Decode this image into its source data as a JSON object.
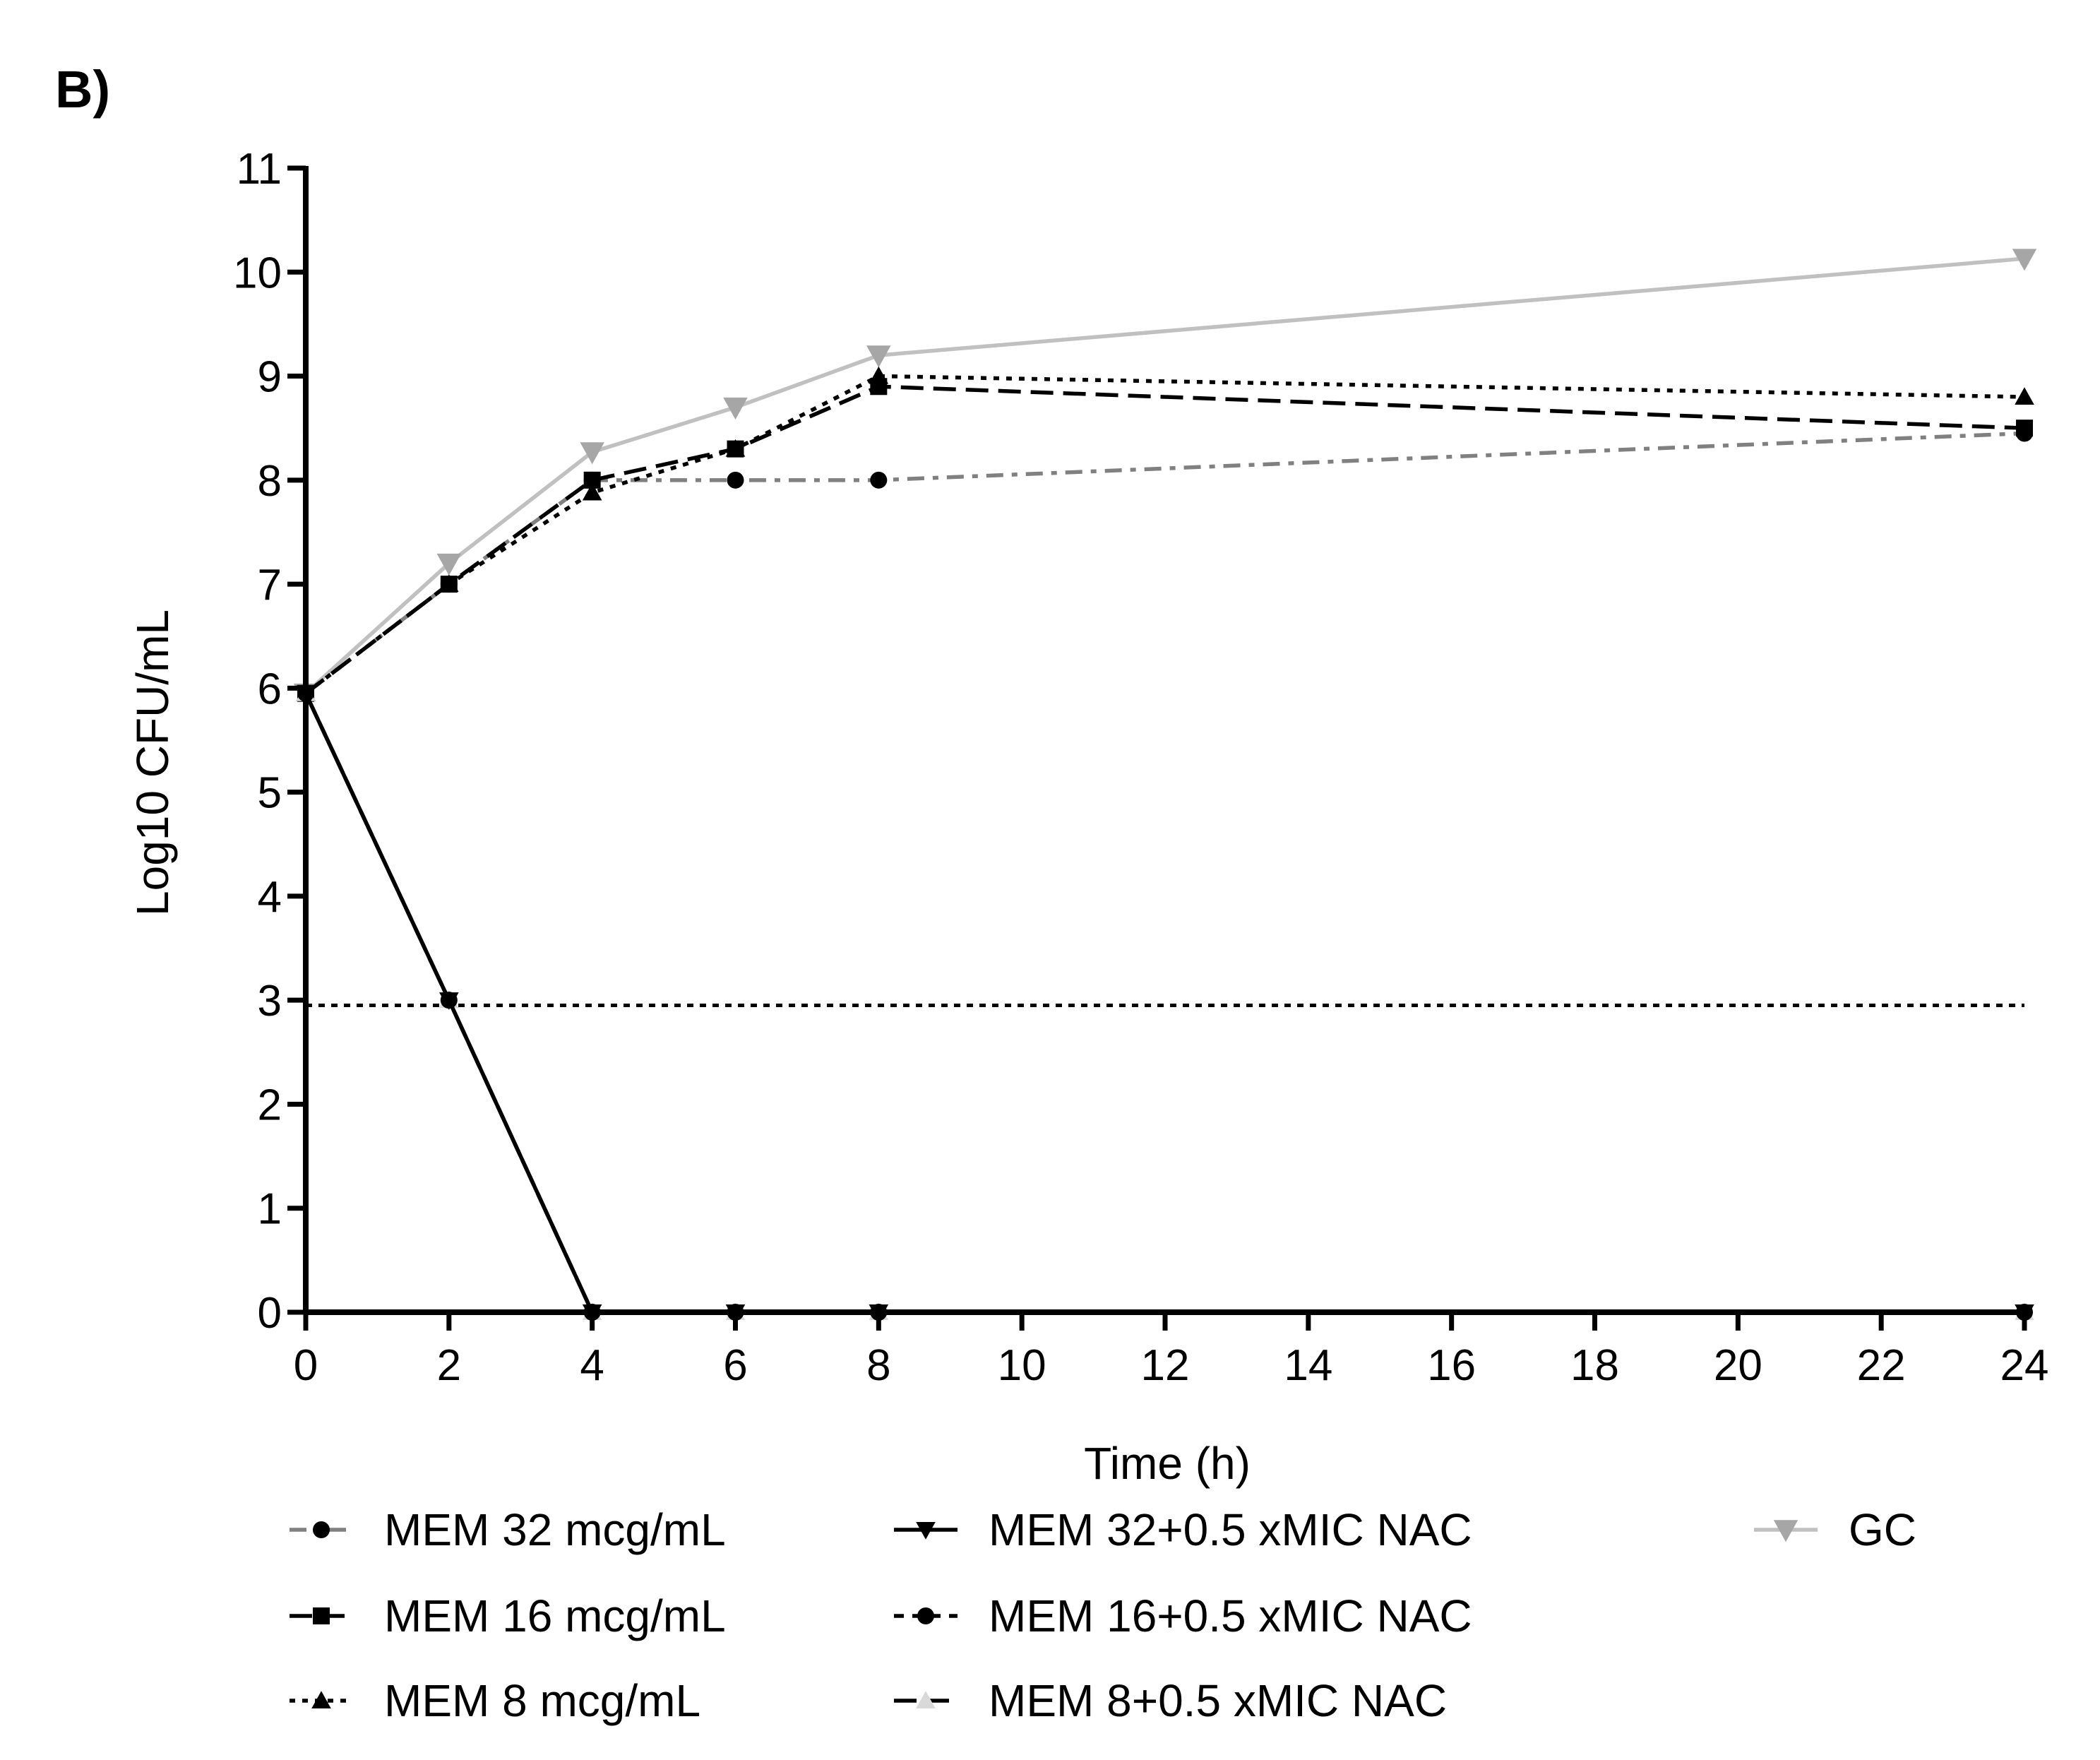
{
  "chart_data": {
    "type": "line",
    "panel_label": "B)",
    "xlabel": "Time (h)",
    "ylabel": "Log10 CFU/mL",
    "xlim": [
      0,
      24
    ],
    "ylim": [
      0,
      11
    ],
    "xticks": [
      0,
      2,
      4,
      6,
      8,
      10,
      12,
      14,
      16,
      18,
      20,
      22,
      24
    ],
    "yticks": [
      0,
      1,
      2,
      3,
      4,
      5,
      6,
      7,
      8,
      9,
      10,
      11
    ],
    "reference_line": {
      "y": 2.95,
      "style": "dotted",
      "color": "#000000"
    },
    "series": [
      {
        "name": "MEM 32 mcg/mL",
        "x": [
          0,
          2,
          4,
          6,
          8,
          24
        ],
        "y": [
          5.95,
          7.0,
          8.0,
          8.0,
          8.0,
          8.45
        ],
        "color": "#808080",
        "marker": "circle",
        "dash": "dashdot",
        "marker_color": "#000000"
      },
      {
        "name": "MEM 16 mcg/mL",
        "x": [
          0,
          2,
          4,
          6,
          8,
          24
        ],
        "y": [
          5.95,
          7.0,
          8.0,
          8.3,
          8.9,
          8.5
        ],
        "color": "#000000",
        "marker": "square",
        "dash": "longdash",
        "marker_color": "#000000"
      },
      {
        "name": "MEM 8 mcg/mL",
        "x": [
          0,
          2,
          4,
          6,
          8,
          24
        ],
        "y": [
          5.95,
          7.0,
          7.88,
          8.3,
          9.0,
          8.8
        ],
        "color": "#000000",
        "marker": "triangle-up",
        "dash": "dot",
        "marker_color": "#000000"
      },
      {
        "name": "MEM 32+0.5 xMIC NAC",
        "x": [
          0,
          2,
          4,
          6,
          8,
          24
        ],
        "y": [
          5.95,
          3.0,
          0,
          0,
          0,
          0
        ],
        "color": "#000000",
        "marker": "triangle-down",
        "dash": "solid",
        "marker_color": "#000000"
      },
      {
        "name": "MEM 16+0.5 xMIC NAC",
        "x": [
          0,
          2,
          4,
          6,
          8,
          24
        ],
        "y": [
          5.95,
          3.0,
          0,
          0,
          0,
          0
        ],
        "color": "#000000",
        "marker": "circle",
        "dash": "shortdash",
        "marker_color": "#000000"
      },
      {
        "name": "MEM 8+0.5 xMIC NAC",
        "x": [
          0,
          2,
          4,
          6,
          8,
          24
        ],
        "y": [
          5.95,
          3.0,
          0,
          0,
          0,
          0
        ],
        "color": "#000000",
        "marker": "triangle-up",
        "dash": "longdash",
        "marker_color": "#d9d9d9"
      },
      {
        "name": "GC",
        "x": [
          0,
          2,
          4,
          6,
          8,
          24
        ],
        "y": [
          5.95,
          7.2,
          8.27,
          8.7,
          9.2,
          10.13
        ],
        "color": "#c0c0c0",
        "marker": "triangle-down",
        "dash": "solid",
        "marker_color": "#a6a6a6"
      }
    ]
  }
}
